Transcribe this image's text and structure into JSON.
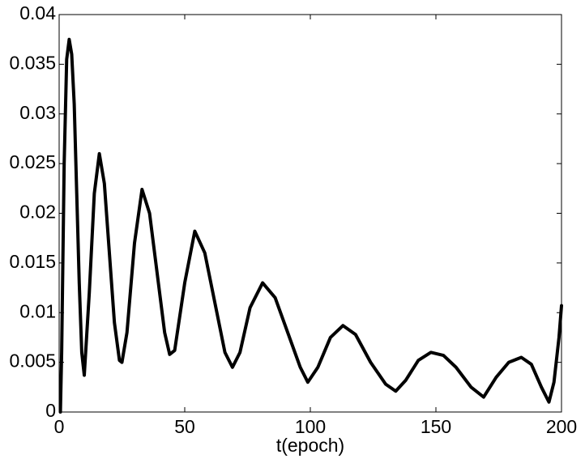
{
  "chart_data": {
    "type": "line",
    "x_label": "t(epoch)",
    "x": [
      0.5,
      1,
      2,
      3,
      4,
      5,
      6,
      7,
      8,
      9,
      10,
      12,
      14,
      16,
      18,
      20,
      22,
      24,
      25,
      27,
      30,
      33,
      36,
      39,
      42,
      44,
      46,
      50,
      54,
      58,
      62,
      66,
      69,
      72,
      76,
      81,
      86,
      91,
      96,
      99,
      103,
      108,
      113,
      118,
      124,
      130,
      134,
      138,
      143,
      148,
      153,
      158,
      164,
      169,
      174,
      179,
      184,
      188,
      192,
      195,
      197,
      199,
      200
    ],
    "series": [
      {
        "color": "#000000",
        "values": [
          0,
          0.006,
          0.025,
          0.0355,
          0.0375,
          0.036,
          0.031,
          0.022,
          0.013,
          0.006,
          0.0037,
          0.012,
          0.022,
          0.026,
          0.023,
          0.016,
          0.009,
          0.0052,
          0.005,
          0.008,
          0.017,
          0.0224,
          0.02,
          0.014,
          0.008,
          0.0058,
          0.0062,
          0.013,
          0.0182,
          0.016,
          0.011,
          0.006,
          0.0045,
          0.006,
          0.0105,
          0.013,
          0.0115,
          0.008,
          0.0045,
          0.003,
          0.0045,
          0.0075,
          0.0087,
          0.0078,
          0.005,
          0.0028,
          0.0021,
          0.0032,
          0.0052,
          0.006,
          0.0057,
          0.0045,
          0.0025,
          0.0015,
          0.0035,
          0.005,
          0.0055,
          0.0048,
          0.0025,
          0.001,
          0.003,
          0.0075,
          0.0107
        ]
      }
    ],
    "xlim": [
      0,
      200
    ],
    "xticks": [
      0,
      50,
      100,
      150,
      200
    ],
    "ylim": [
      0,
      0.04
    ],
    "yticks": [
      0,
      0.005,
      0.01,
      0.015,
      0.02,
      0.025,
      0.03,
      0.035,
      0.04
    ]
  }
}
